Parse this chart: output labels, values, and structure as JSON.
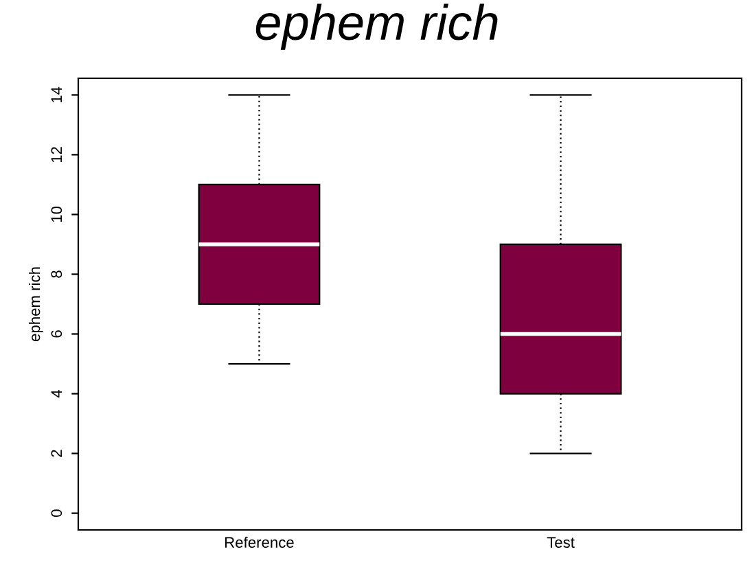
{
  "chart_data": {
    "type": "box",
    "title": "ephem rich",
    "ylabel": "ephem rich",
    "categories": [
      "Reference",
      "Test"
    ],
    "boxes": [
      {
        "low": 5,
        "q1": 7,
        "median": 9,
        "q3": 11,
        "high": 14
      },
      {
        "low": 2,
        "q1": 4,
        "median": 6,
        "q3": 9,
        "high": 14
      }
    ],
    "color": "#7f003f",
    "ylim": [
      -0.56,
      14.56
    ],
    "yticks": [
      0,
      2,
      4,
      6,
      8,
      10,
      12,
      14
    ],
    "grid": false,
    "legend": false
  }
}
